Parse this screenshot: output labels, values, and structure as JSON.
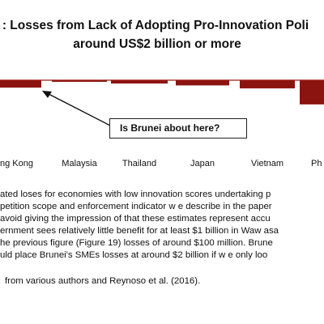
{
  "chart_data": {
    "type": "bar",
    "title_line1": ": Losses from Lack of Adopting Pro-Innovation Poli",
    "title_line2": "around US$2 billion or more",
    "categories": [
      "ng Kong",
      "Malaysia",
      "Thailand",
      "Japan",
      "Vietnam",
      "Ph"
    ],
    "values": [
      -2.0,
      -0.3,
      -0.9,
      -1.4,
      -2.2,
      -6.5
    ],
    "bar_color": "#8b1410",
    "baseline_color": "#9a1a12",
    "annotation": "Is Brunei about here?",
    "grid": false,
    "legend": "none"
  },
  "body_lines": [
    "ated loses for economies with low  innovation scores undertaking p",
    "petition scope and enforcement indicator w e describe in the paper",
    "avoid giving the impression of that these estimates represent accu",
    "ernment sees relatively little benefit for at least $1 billion in Waw asa",
    "he previous figure (Figure 19) losses of around $100 million. Brune",
    "uld place Brunei's SMEs losses at around $2 billion if w e only loo"
  ],
  "source_line": "from various authors and Reynoso et al. (2016)."
}
